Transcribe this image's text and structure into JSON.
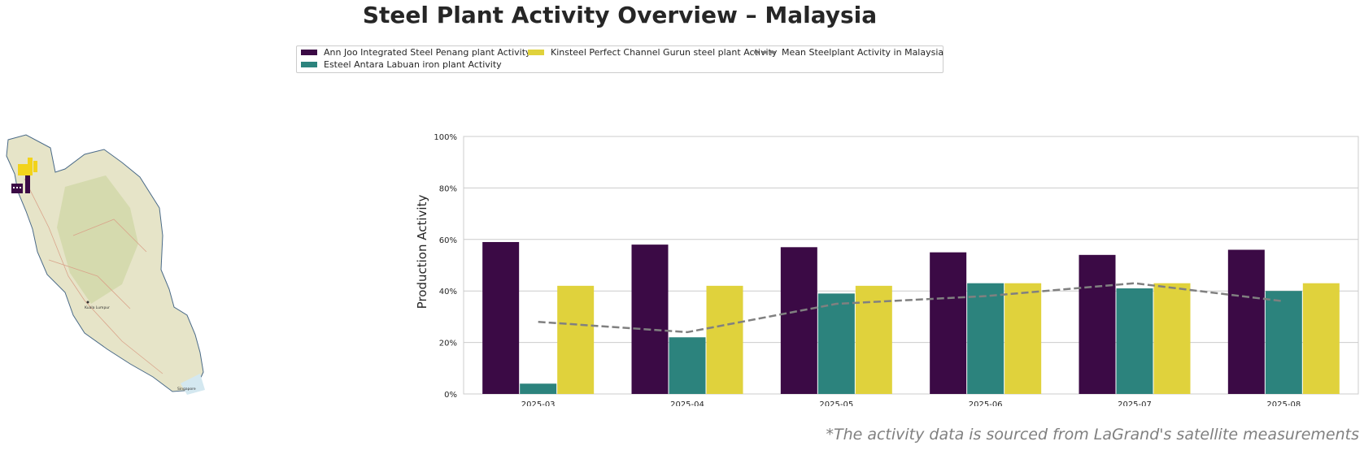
{
  "title": "Steel Plant Activity Overview – Malaysia",
  "footnote": "*The activity data is sourced from LaGrand's satellite measurements",
  "legend": [
    {
      "label": "Ann Joo Integrated Steel Penang plant Activity",
      "color": "#3b0a45",
      "kind": "bar"
    },
    {
      "label": "Esteel Antara Labuan iron plant Activity",
      "color": "#2c837d",
      "kind": "bar"
    },
    {
      "label": "Kinsteel Perfect Channel Gurun steel plant Activity",
      "color": "#e0d23c",
      "kind": "bar"
    },
    {
      "label": "Mean Steelplant Activity in Malaysia",
      "color": "#808080",
      "kind": "dashed-line"
    }
  ],
  "map": {
    "labels": [
      "Kuala Lumpur",
      "Singapore"
    ],
    "colors": {
      "land": "#e6e4c8",
      "outline": "#4a6a88",
      "water": "#d4e8f0",
      "marker_yellow": "#f2d31b",
      "marker_purple": "#3b0a45"
    }
  },
  "chart_data": {
    "type": "bar",
    "categories": [
      "2025-03",
      "2025-04",
      "2025-05",
      "2025-06",
      "2025-07",
      "2025-08"
    ],
    "series": [
      {
        "name": "Ann Joo Integrated Steel Penang plant Activity",
        "color": "#3b0a45",
        "values": [
          59,
          58,
          57,
          55,
          54,
          56
        ]
      },
      {
        "name": "Esteel Antara Labuan iron plant Activity",
        "color": "#2c837d",
        "values": [
          4,
          22,
          39,
          43,
          41,
          40
        ]
      },
      {
        "name": "Kinsteel Perfect Channel Gurun steel plant Activity",
        "color": "#e0d23c",
        "values": [
          42,
          42,
          42,
          43,
          43,
          43
        ]
      }
    ],
    "line": {
      "name": "Mean Steelplant Activity in Malaysia",
      "color": "#808080",
      "style": "dashed",
      "values": [
        28,
        24,
        35,
        38,
        43,
        36
      ]
    },
    "ylabel": "Production Activity",
    "xlabel": "",
    "ylim": [
      0,
      100
    ],
    "yticks": [
      "0%",
      "20%",
      "40%",
      "60%",
      "80%",
      "100%"
    ],
    "grid": true
  }
}
